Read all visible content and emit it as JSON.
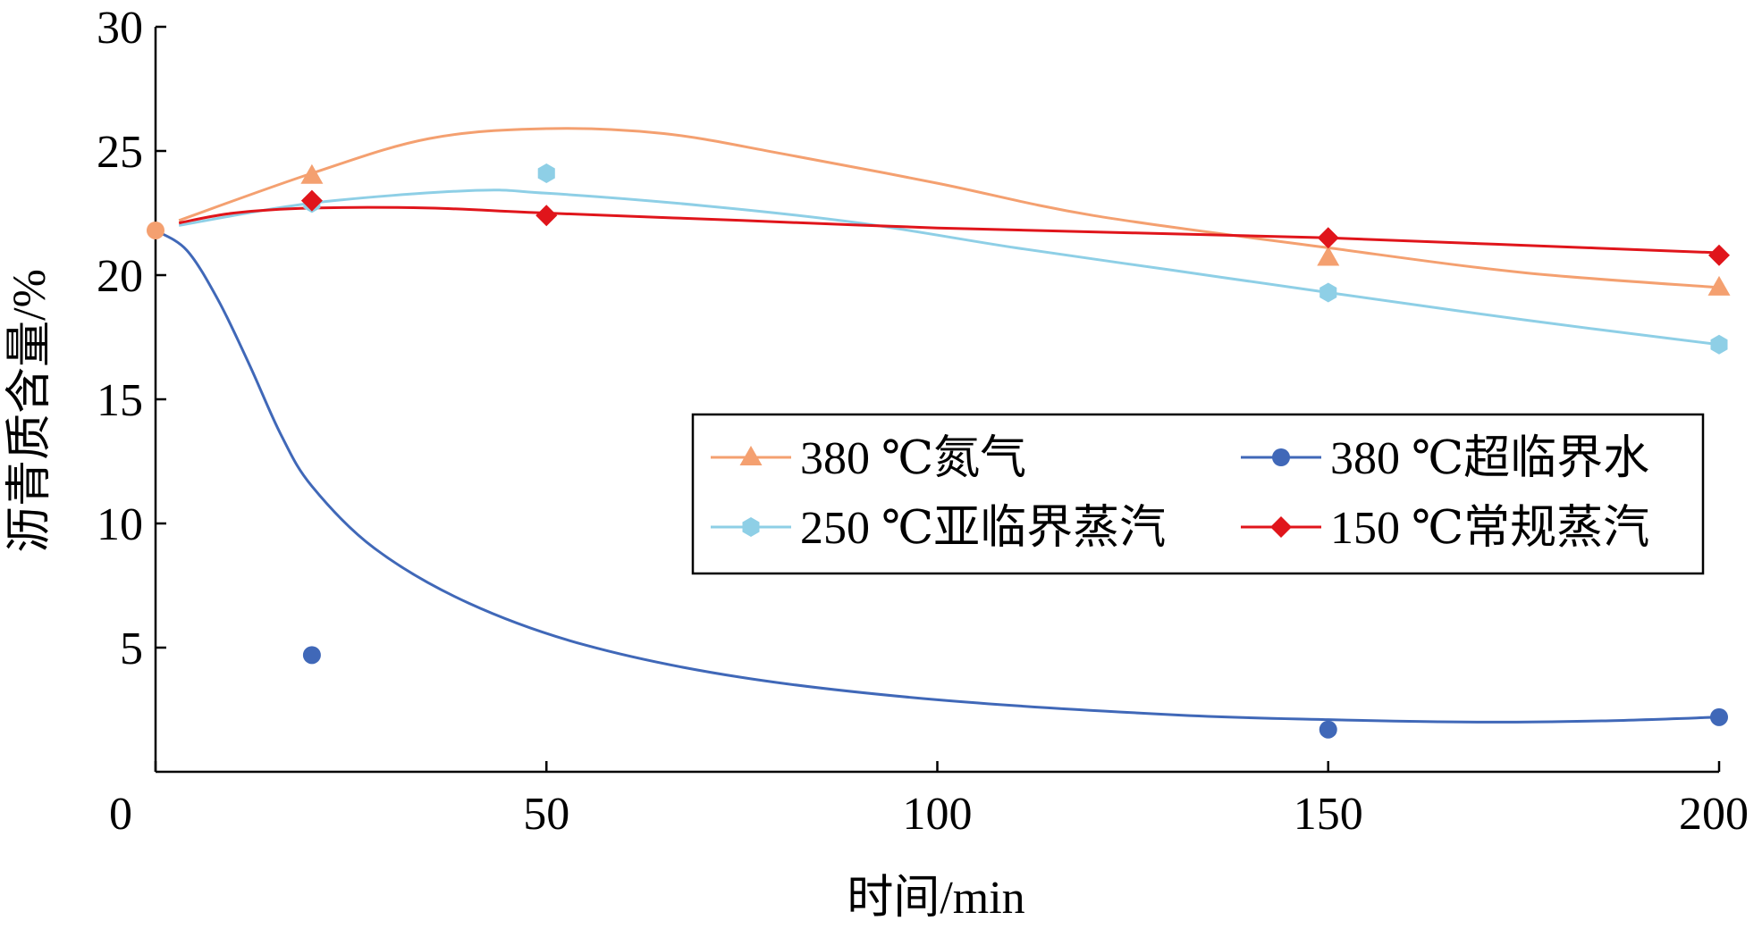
{
  "chart_data": {
    "type": "scatter",
    "title": "",
    "xlabel": "时间/min",
    "ylabel": "沥青质含量/%",
    "xlim": [
      0,
      200
    ],
    "ylim": [
      0,
      30
    ],
    "xticks": [
      0,
      50,
      100,
      150,
      200
    ],
    "yticks": [
      5,
      10,
      15,
      20,
      25,
      30
    ],
    "xtick_labels": [
      "0",
      "50",
      "100",
      "150",
      "200"
    ],
    "ytick_labels": [
      "5",
      "10",
      "15",
      "20",
      "25",
      "30"
    ],
    "grid": false,
    "legend_position": "center-right",
    "start_point": {
      "x": 0,
      "y": 21.8,
      "color": "#f4a070"
    },
    "series": [
      {
        "name": "380 ℃氮气",
        "marker": "triangle",
        "color": "#f4a070",
        "points": [
          {
            "x": 20,
            "y": 24.0
          },
          {
            "x": 150,
            "y": 20.7
          },
          {
            "x": 200,
            "y": 19.5
          }
        ],
        "trend": [
          {
            "x": 3,
            "y": 22.2
          },
          {
            "x": 20,
            "y": 24.1
          },
          {
            "x": 35,
            "y": 25.5
          },
          {
            "x": 50,
            "y": 25.9
          },
          {
            "x": 65,
            "y": 25.7
          },
          {
            "x": 80,
            "y": 24.9
          },
          {
            "x": 100,
            "y": 23.7
          },
          {
            "x": 120,
            "y": 22.4
          },
          {
            "x": 150,
            "y": 21.1
          },
          {
            "x": 175,
            "y": 20.1
          },
          {
            "x": 200,
            "y": 19.5
          }
        ]
      },
      {
        "name": "250 ℃亚临界蒸汽",
        "marker": "hexagon",
        "color": "#8ecfe6",
        "points": [
          {
            "x": 20,
            "y": 22.9
          },
          {
            "x": 50,
            "y": 24.1
          },
          {
            "x": 150,
            "y": 19.3
          },
          {
            "x": 200,
            "y": 17.2
          }
        ],
        "trend": [
          {
            "x": 3,
            "y": 22.0
          },
          {
            "x": 20,
            "y": 22.9
          },
          {
            "x": 40,
            "y": 23.4
          },
          {
            "x": 50,
            "y": 23.3
          },
          {
            "x": 70,
            "y": 22.8
          },
          {
            "x": 90,
            "y": 22.1
          },
          {
            "x": 110,
            "y": 21.1
          },
          {
            "x": 130,
            "y": 20.2
          },
          {
            "x": 150,
            "y": 19.3
          },
          {
            "x": 175,
            "y": 18.2
          },
          {
            "x": 200,
            "y": 17.2
          }
        ]
      },
      {
        "name": "380 ℃超临界水",
        "marker": "circle",
        "color": "#4068b8",
        "points": [
          {
            "x": 20,
            "y": 4.7
          },
          {
            "x": 150,
            "y": 1.7
          },
          {
            "x": 200,
            "y": 2.2
          }
        ],
        "trend": [
          {
            "x": 0,
            "y": 21.8
          },
          {
            "x": 4,
            "y": 21.0
          },
          {
            "x": 8,
            "y": 19.0
          },
          {
            "x": 12,
            "y": 16.4
          },
          {
            "x": 16,
            "y": 13.6
          },
          {
            "x": 20,
            "y": 11.5
          },
          {
            "x": 28,
            "y": 9.0
          },
          {
            "x": 40,
            "y": 6.8
          },
          {
            "x": 55,
            "y": 5.1
          },
          {
            "x": 75,
            "y": 3.8
          },
          {
            "x": 100,
            "y": 2.9
          },
          {
            "x": 130,
            "y": 2.3
          },
          {
            "x": 150,
            "y": 2.1
          },
          {
            "x": 170,
            "y": 2.0
          },
          {
            "x": 185,
            "y": 2.05
          },
          {
            "x": 200,
            "y": 2.2
          }
        ]
      },
      {
        "name": "150 ℃常规蒸汽",
        "marker": "diamond",
        "color": "#e0151b",
        "points": [
          {
            "x": 20,
            "y": 23.0
          },
          {
            "x": 50,
            "y": 22.4
          },
          {
            "x": 150,
            "y": 21.5
          },
          {
            "x": 200,
            "y": 20.8
          }
        ],
        "trend": [
          {
            "x": 3,
            "y": 22.1
          },
          {
            "x": 10,
            "y": 22.5
          },
          {
            "x": 20,
            "y": 22.7
          },
          {
            "x": 35,
            "y": 22.7
          },
          {
            "x": 50,
            "y": 22.5
          },
          {
            "x": 75,
            "y": 22.2
          },
          {
            "x": 100,
            "y": 21.9
          },
          {
            "x": 125,
            "y": 21.7
          },
          {
            "x": 150,
            "y": 21.5
          },
          {
            "x": 175,
            "y": 21.2
          },
          {
            "x": 200,
            "y": 20.9
          }
        ]
      }
    ]
  }
}
